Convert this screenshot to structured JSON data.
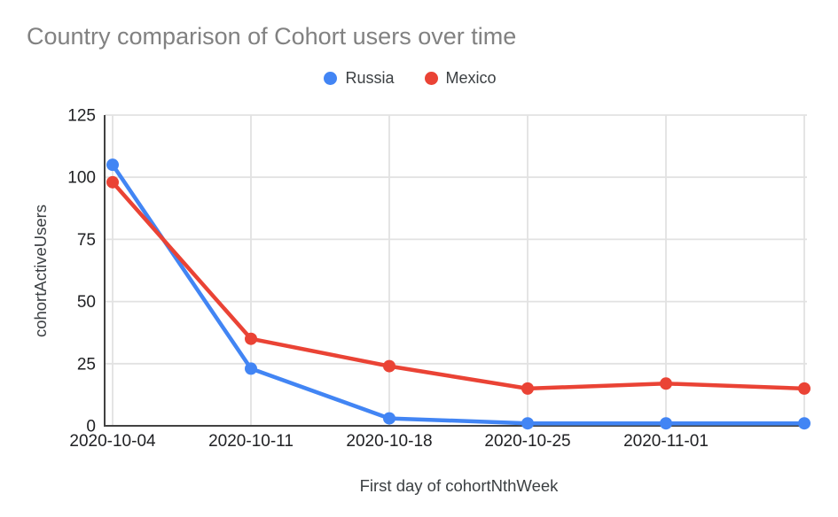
{
  "chart_data": {
    "type": "line",
    "title": "Country comparison of Cohort users over time",
    "xlabel": "First day of cohortNthWeek",
    "ylabel": "cohortActiveUsers",
    "categories": [
      "2020-10-04",
      "2020-10-11",
      "2020-10-18",
      "2020-10-25",
      "2020-11-01",
      ""
    ],
    "series": [
      {
        "name": "Russia",
        "color": "#4285F4",
        "values": [
          105,
          23,
          3,
          1,
          1,
          1
        ]
      },
      {
        "name": "Mexico",
        "color": "#EA4335",
        "values": [
          98,
          35,
          24,
          15,
          17,
          15
        ]
      }
    ],
    "y_ticks": [
      0,
      25,
      50,
      75,
      100,
      125
    ],
    "ylim": [
      0,
      125
    ],
    "grid": true,
    "legend_position": "top",
    "colors": {
      "grid": "#e2e2e2",
      "axis": "#424242",
      "title": "#818181",
      "axis_title": "#3c4043",
      "tick_label": "#202124"
    }
  }
}
